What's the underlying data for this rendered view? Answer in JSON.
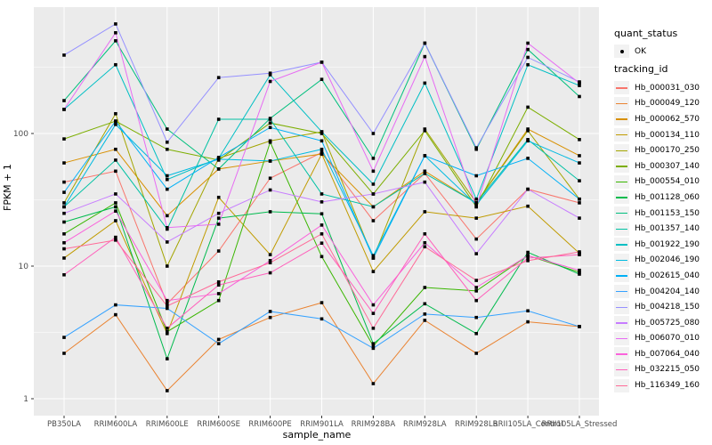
{
  "legend": {
    "quant_status": {
      "title": "quant_status",
      "items": [
        {
          "label": "OK"
        }
      ]
    },
    "tracking_id": {
      "title": "tracking_id"
    }
  },
  "chart_data": {
    "type": "line",
    "title": "",
    "xlabel": "sample_name",
    "ylabel": "FPKM + 1",
    "y_scale": "log10",
    "y_ticks": [
      "1",
      "10",
      "100"
    ],
    "y_range_approx": [
      0.75,
      890
    ],
    "grid": "on",
    "legend_position": "right",
    "panel_bg": "#EBEBEB",
    "grid_color": "#FFFFFF",
    "point_color": "#000000",
    "axis_text_color": "#4D4D4D",
    "categories": [
      "PB350LA",
      "RRIM600LA",
      "RRIM600LE",
      "RRIM600SE",
      "RRIM600PE",
      "RRIM901LA",
      "RRIM928BA",
      "RRIM928LA",
      "RRIM928LB",
      "RRII105LA_Control",
      "RRII105LA_Stressed"
    ],
    "series": [
      {
        "name": "Hb_000031_030",
        "color": "#F8766D",
        "values": [
          43,
          52,
          5.2,
          13,
          46,
          72,
          22,
          50,
          16,
          38,
          30
        ]
      },
      {
        "name": "Hb_000049_120",
        "color": "#EA8331",
        "values": [
          2.2,
          4.3,
          1.15,
          2.8,
          4.1,
          5.3,
          1.3,
          3.9,
          2.2,
          3.8,
          3.5
        ]
      },
      {
        "name": "Hb_000062_570",
        "color": "#D89000",
        "values": [
          60,
          76,
          24,
          54,
          62,
          70,
          28,
          52,
          30,
          108,
          68
        ]
      },
      {
        "name": "Hb_000134_110",
        "color": "#C09B00",
        "values": [
          11.5,
          22,
          3.1,
          33,
          12.2,
          70,
          9.1,
          25.7,
          23,
          28.3,
          12.5
        ]
      },
      {
        "name": "Hb_000170_250",
        "color": "#A3A500",
        "values": [
          30,
          141,
          10,
          65,
          88,
          103,
          11.5,
          108,
          30,
          105,
          32
        ]
      },
      {
        "name": "Hb_000307_140",
        "color": "#7CAE00",
        "values": [
          91,
          124,
          76,
          63,
          120,
          100,
          35,
          105,
          28,
          158,
          90
        ]
      },
      {
        "name": "Hb_000554_010",
        "color": "#39B600",
        "values": [
          17.5,
          30,
          3.2,
          5.5,
          86,
          11.8,
          2.5,
          6.9,
          6.5,
          12,
          9
        ]
      },
      {
        "name": "Hb_001128_060",
        "color": "#00BB4E",
        "values": [
          21.5,
          28,
          2.0,
          23,
          25.7,
          24.8,
          2.6,
          5.2,
          3.1,
          12.7,
          8.7
        ]
      },
      {
        "name": "Hb_001153_150",
        "color": "#00BF7D",
        "values": [
          177,
          500,
          108,
          54,
          130,
          256,
          65,
          480,
          76,
          430,
          190
        ]
      },
      {
        "name": "Hb_001357_140",
        "color": "#00C1A3",
        "values": [
          28,
          63,
          19,
          128,
          128,
          35,
          28,
          50,
          30,
          90,
          44
        ]
      },
      {
        "name": "Hb_001922_190",
        "color": "#00BFC4",
        "values": [
          152,
          330,
          45,
          65,
          277,
          103,
          41.5,
          240,
          32,
          330,
          230
        ]
      },
      {
        "name": "Hb_002046_190",
        "color": "#00BAE0",
        "values": [
          28,
          117,
          48,
          64,
          62,
          76,
          12,
          68,
          29,
          88,
          60
        ]
      },
      {
        "name": "Hb_002615_040",
        "color": "#00B0F6",
        "values": [
          36,
          124,
          38,
          66,
          111,
          88,
          11.5,
          68,
          48,
          65,
          32
        ]
      },
      {
        "name": "Hb_004204_140",
        "color": "#35A2FF",
        "values": [
          2.9,
          5.1,
          4.8,
          2.6,
          4.55,
          4.0,
          2.4,
          4.35,
          4.1,
          4.6,
          3.5
        ]
      },
      {
        "name": "Hb_004218_150",
        "color": "#9590FF",
        "values": [
          390,
          670,
          86,
          264,
          285,
          345,
          100,
          480,
          78,
          375,
          245
        ]
      },
      {
        "name": "Hb_005725_080",
        "color": "#C77CFF",
        "values": [
          25,
          35,
          15.2,
          25,
          37.5,
          30.5,
          35,
          43,
          12.4,
          38,
          23
        ]
      },
      {
        "name": "Hb_006070_010",
        "color": "#E76BF3",
        "values": [
          152,
          575,
          19.5,
          20.7,
          247,
          345,
          52,
          380,
          28,
          480,
          240
        ]
      },
      {
        "name": "Hb_007064_040",
        "color": "#FA62DB",
        "values": [
          15,
          26,
          5.5,
          6.2,
          11,
          20.4,
          5.1,
          15,
          6.9,
          12,
          9.3
        ]
      },
      {
        "name": "Hb_032215_050",
        "color": "#FF62BC",
        "values": [
          8.6,
          16.5,
          3.4,
          7.2,
          8.9,
          14.9,
          4.4,
          17.5,
          5.5,
          11.5,
          12.2
        ]
      },
      {
        "name": "Hb_116349_160",
        "color": "#FF6A98",
        "values": [
          13.5,
          15.7,
          5.0,
          7.6,
          10.6,
          17.5,
          3.4,
          14,
          7.8,
          11,
          12.8
        ]
      }
    ]
  }
}
